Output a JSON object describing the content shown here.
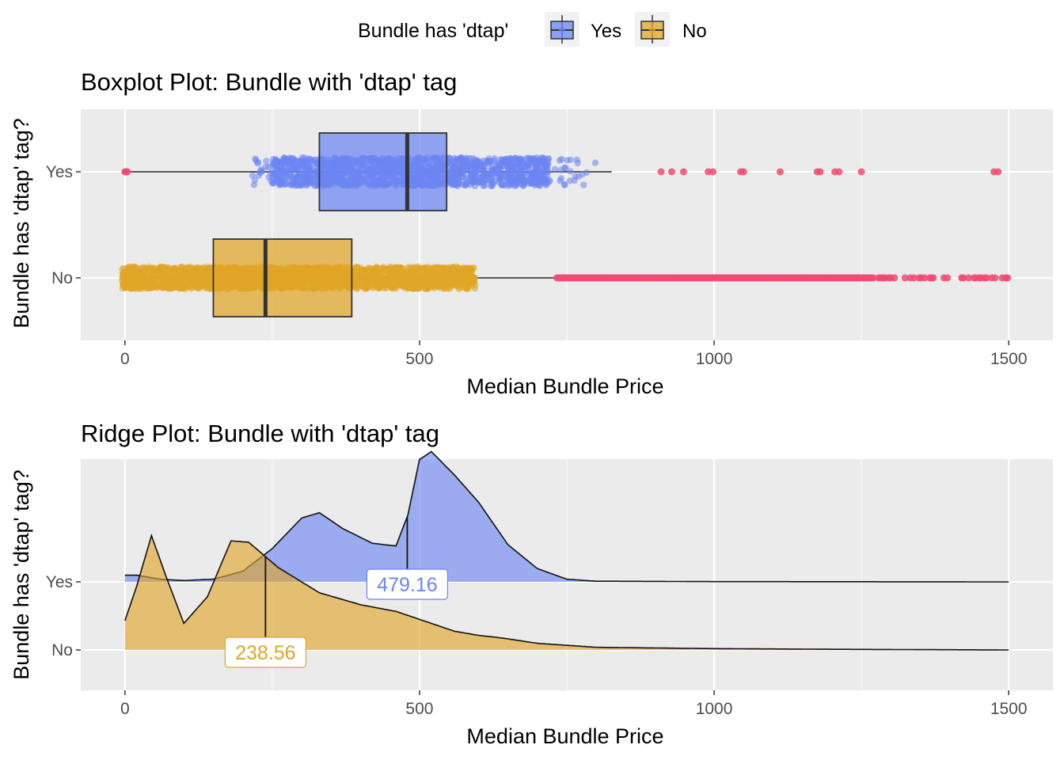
{
  "legend": {
    "title": "Bundle has 'dtap'",
    "items": [
      {
        "label": "Yes",
        "color": "#6b85f2"
      },
      {
        "label": "No",
        "color": "#e0a526"
      }
    ]
  },
  "colors": {
    "yes": "#6b85f2",
    "no": "#e0a526",
    "outlier": "#f04a72",
    "panel": "#ebebeb",
    "grid": "#ffffff"
  },
  "chart_data": [
    {
      "type": "boxplot",
      "title": "Boxplot Plot: Bundle with 'dtap' tag",
      "xlabel": "Median Bundle Price",
      "ylabel": "Bundle has 'dtap' tag?",
      "xlim": [
        -75,
        1575
      ],
      "xticks": [
        0,
        500,
        1000,
        1500
      ],
      "xtick_labels": [
        "0",
        "500",
        "1000",
        "1500"
      ],
      "categories": [
        "Yes",
        "No"
      ],
      "boxes": [
        {
          "name": "Yes",
          "min": 0,
          "q1": 330,
          "median": 479.16,
          "q3": 546,
          "whisker_high": 826,
          "jitter_range": [
            152,
            800
          ],
          "outliers": [
            0,
            2,
            4,
            910,
            928,
            948,
            990,
            998,
            1045,
            1050,
            1112,
            1175,
            1180,
            1205,
            1212,
            1250,
            1475,
            1482
          ]
        },
        {
          "name": "No",
          "min": 0,
          "q1": 150,
          "median": 238.56,
          "q3": 385,
          "whisker_high": 730,
          "jitter_range": [
            -5,
            595
          ],
          "outliers_range": [
            733,
            1500
          ]
        }
      ]
    },
    {
      "type": "ridge",
      "title": "Ridge Plot: Bundle with 'dtap' tag",
      "xlabel": "Median Bundle Price",
      "ylabel": "Bundle has 'dtap' tag?",
      "xlim": [
        -75,
        1575
      ],
      "xticks": [
        0,
        500,
        1000,
        1500
      ],
      "xtick_labels": [
        "0",
        "500",
        "1000",
        "1500"
      ],
      "categories": [
        "Yes",
        "No"
      ],
      "series": [
        {
          "name": "Yes",
          "median": 479.16,
          "median_label": "479.16",
          "density": [
            [
              0,
              0.05
            ],
            [
              20,
              0.05
            ],
            [
              60,
              0.02
            ],
            [
              100,
              0.01
            ],
            [
              150,
              0.02
            ],
            [
              200,
              0.08
            ],
            [
              250,
              0.25
            ],
            [
              300,
              0.48
            ],
            [
              330,
              0.52
            ],
            [
              370,
              0.4
            ],
            [
              420,
              0.29
            ],
            [
              460,
              0.27
            ],
            [
              480,
              0.5
            ],
            [
              500,
              0.92
            ],
            [
              520,
              0.98
            ],
            [
              560,
              0.8
            ],
            [
              600,
              0.6
            ],
            [
              650,
              0.28
            ],
            [
              700,
              0.1
            ],
            [
              750,
              0.02
            ],
            [
              800,
              0.005
            ],
            [
              1000,
              0.002
            ],
            [
              1500,
              0.0
            ]
          ]
        },
        {
          "name": "No",
          "median": 238.56,
          "median_label": "238.56",
          "density": [
            [
              0,
              0.22
            ],
            [
              20,
              0.48
            ],
            [
              45,
              0.86
            ],
            [
              70,
              0.55
            ],
            [
              100,
              0.2
            ],
            [
              140,
              0.4
            ],
            [
              180,
              0.82
            ],
            [
              210,
              0.81
            ],
            [
              260,
              0.62
            ],
            [
              330,
              0.43
            ],
            [
              400,
              0.34
            ],
            [
              460,
              0.29
            ],
            [
              520,
              0.2
            ],
            [
              560,
              0.14
            ],
            [
              600,
              0.11
            ],
            [
              640,
              0.09
            ],
            [
              700,
              0.05
            ],
            [
              800,
              0.02
            ],
            [
              1000,
              0.01
            ],
            [
              1200,
              0.005
            ],
            [
              1500,
              0.0
            ]
          ]
        }
      ]
    }
  ]
}
